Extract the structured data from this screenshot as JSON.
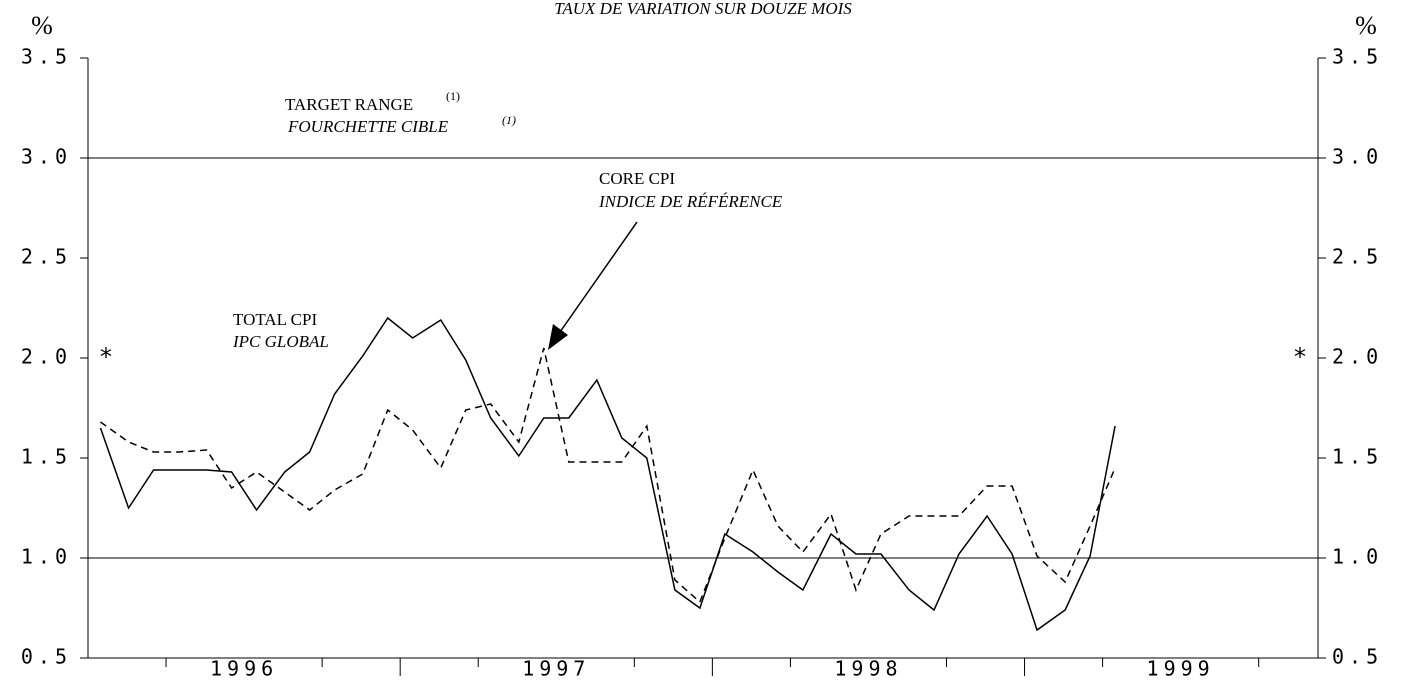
{
  "chart_data": {
    "type": "line",
    "title": "TAUX DE VARIATION SUR DOUZE MOIS",
    "y_label": "%",
    "y2_label": "%",
    "annotations": {
      "target_en": "TARGET RANGE",
      "target_en_sup": "(1)",
      "target_fr": "FOURCHETTE CIBLE",
      "target_fr_sup": "(1)",
      "core_en": "CORE CPI",
      "core_fr": "INDICE DE RÉFÉRENCE",
      "total_en": "TOTAL CPI",
      "total_fr": "IPC GLOBAL",
      "star_left": "*",
      "star_right": "*"
    },
    "target_range": [
      1.0,
      3.0
    ],
    "x": [
      1996.04,
      1996.13,
      1996.21,
      1996.29,
      1996.38,
      1996.46,
      1996.54,
      1996.63,
      1996.71,
      1996.79,
      1996.88,
      1996.96,
      1997.04,
      1997.13,
      1997.21,
      1997.29,
      1997.38,
      1997.46,
      1997.54,
      1997.63,
      1997.71,
      1997.79,
      1997.88,
      1997.96,
      1998.04,
      1998.13,
      1998.21,
      1998.29,
      1998.38,
      1998.46,
      1998.54,
      1998.63,
      1998.71,
      1998.79,
      1998.88,
      1998.96,
      1999.04,
      1999.13,
      1999.21,
      1999.29
    ],
    "series": [
      {
        "name": "TOTAL CPI",
        "color": "#000000",
        "style": "solid",
        "values": [
          1.65,
          1.25,
          1.44,
          1.44,
          1.44,
          1.43,
          1.24,
          1.43,
          1.53,
          1.82,
          2.01,
          2.2,
          2.1,
          2.19,
          1.99,
          1.7,
          1.51,
          1.7,
          1.7,
          1.89,
          1.6,
          1.5,
          0.84,
          0.75,
          1.12,
          1.03,
          0.93,
          0.84,
          1.12,
          1.02,
          1.02,
          0.84,
          0.74,
          1.02,
          1.21,
          1.02,
          0.64,
          0.74,
          1.01,
          1.66
        ]
      },
      {
        "name": "CORE CPI",
        "color": "#000000",
        "style": "dashed",
        "values": [
          1.68,
          1.58,
          1.53,
          1.53,
          1.54,
          1.35,
          1.43,
          1.33,
          1.24,
          1.34,
          1.42,
          1.74,
          1.64,
          1.45,
          1.74,
          1.77,
          1.58,
          2.05,
          1.48,
          1.48,
          1.48,
          1.66,
          0.89,
          0.78,
          1.1,
          1.44,
          1.16,
          1.03,
          1.22,
          0.84,
          1.12,
          1.21,
          1.21,
          1.21,
          1.36,
          1.36,
          1.01,
          0.88,
          1.16,
          1.45
        ]
      }
    ],
    "xlim": [
      1996,
      1999.94
    ],
    "xticks": [
      {
        "value": 1996.5,
        "label": "1996"
      },
      {
        "value": 1997.5,
        "label": "1997"
      },
      {
        "value": 1998.5,
        "label": "1998"
      },
      {
        "value": 1999.5,
        "label": "1999"
      }
    ],
    "xminor_ticks": [
      1996.25,
      1996.75,
      1997,
      1997.25,
      1997.75,
      1998,
      1998.25,
      1998.75,
      1999,
      1999.25,
      1999.75
    ],
    "ylim": [
      0.5,
      3.5
    ],
    "yticks": [
      0.5,
      {
        "value": 1,
        "label": "1.0"
      },
      1.5,
      {
        "value": 2,
        "label": "2.0"
      },
      2.5,
      {
        "value": 3,
        "label": "3.0"
      },
      3.5
    ],
    "y2lim": [
      0.5,
      3.5
    ],
    "y2ticks": [
      0.5,
      {
        "value": 1,
        "label": "1.0"
      },
      1.5,
      {
        "value": 2,
        "label": "2.0"
      },
      2.5,
      {
        "value": 3,
        "label": "3.0"
      },
      3.5
    ]
  }
}
